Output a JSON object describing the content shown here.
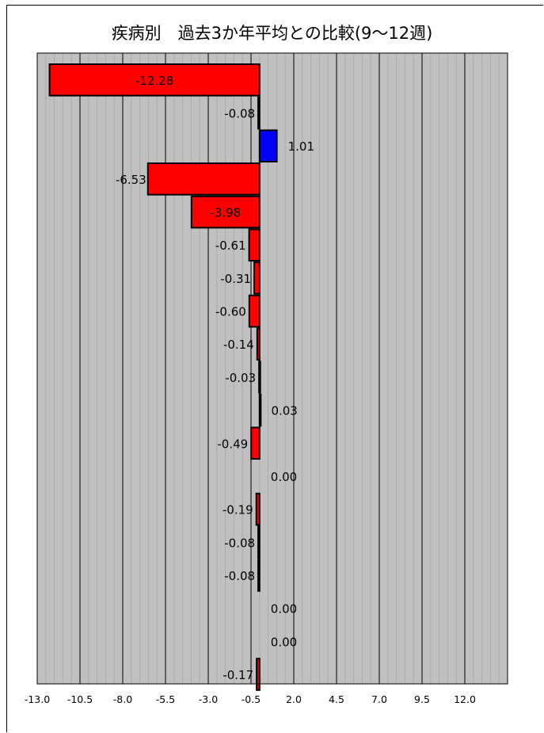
{
  "chart_data": {
    "type": "bar",
    "orientation": "horizontal",
    "title": "疾病別　過去3か年平均との比較(9〜12週)",
    "xlim": [
      -13.0,
      14.5
    ],
    "xticks": [
      -13.0,
      -10.5,
      -8.0,
      -5.5,
      -3.0,
      -0.5,
      2.0,
      4.5,
      7.0,
      9.5,
      12.0
    ],
    "xtick_labels": [
      "-13.0",
      "-10.5",
      "-8.0",
      "-5.5",
      "-3.0",
      "-0.5",
      "2.0",
      "4.5",
      "7.0",
      "9.5",
      "12.0"
    ],
    "grid": true,
    "colors": {
      "negative": "#ff0000",
      "positive": "#0000ff",
      "plot_bg": "#c0c0c0"
    },
    "values": [
      -12.28,
      -0.08,
      1.01,
      -6.53,
      -3.98,
      -0.61,
      -0.31,
      -0.6,
      -0.14,
      -0.03,
      0.03,
      -0.49,
      0.0,
      -0.19,
      -0.08,
      -0.08,
      0.0,
      0.0,
      -0.17
    ],
    "labels": [
      "-12.28",
      "-0.08",
      "1.01",
      "-6.53",
      "-3.98",
      "-0.61",
      "-0.31",
      "-0.60",
      "-0.14",
      "-0.03",
      "0.03",
      "-0.49",
      "0.00",
      "-0.19",
      "-0.08",
      "-0.08",
      "0.00",
      "0.00",
      "-0.17"
    ]
  }
}
